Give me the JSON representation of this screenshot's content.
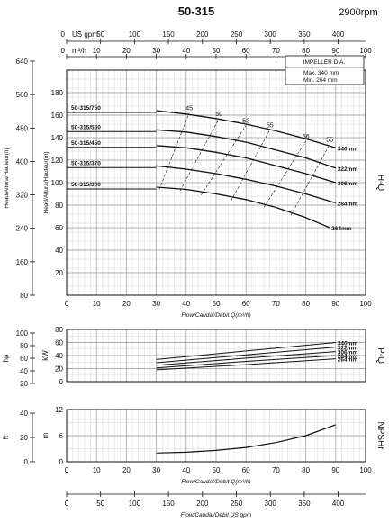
{
  "header": {
    "title": "50-315",
    "speed": "2900rpm"
  },
  "top_axes": {
    "us_gpm": {
      "label": "US gpm",
      "ticks": [
        0,
        50,
        100,
        150,
        200,
        250,
        300,
        350,
        400
      ]
    },
    "m3h": {
      "label": "m³/h",
      "ticks": [
        0,
        10,
        20,
        30,
        40,
        50,
        60,
        70,
        80,
        90,
        100
      ]
    }
  },
  "bottom_axis": {
    "label": "Flow/Caudal/Débit  US gpm",
    "ticks": [
      0,
      50,
      100,
      150,
      200,
      250,
      300,
      350,
      400
    ]
  },
  "impeller_box": {
    "title": "IMPELLER DIA.",
    "max": "Max.  340  mm",
    "min": "Min.   264  mm"
  },
  "side_labels": {
    "hq": "H-Q",
    "pq": "P-Q",
    "npsh": "NPSHr"
  },
  "colors": {
    "line": "#111111",
    "grid": "#9a9a9a",
    "grid_minor": "#cfcfcf"
  },
  "chart_data": [
    {
      "type": "line",
      "title": "H-Q",
      "xlabel": "Flow/Caudal/Débit Q(m³/h)",
      "ylabel": "Head/Altura/Hauteur(m)",
      "ylabel_secondary": "Head/Altura/Hauteur(ft)",
      "xlim": [
        0,
        100
      ],
      "ylim": [
        0,
        200
      ],
      "xticks": [
        0,
        10,
        20,
        30,
        40,
        50,
        60,
        70,
        80,
        90,
        100
      ],
      "yticks": [
        20,
        40,
        60,
        80,
        100,
        120,
        140,
        160,
        180
      ],
      "yticks_secondary": [
        80,
        160,
        240,
        320,
        400,
        480,
        560,
        640
      ],
      "grid": true,
      "series": [
        {
          "name": "340mm",
          "x": [
            30,
            40,
            50,
            60,
            70,
            80,
            90
          ],
          "y": [
            164,
            161,
            157,
            152,
            146,
            139,
            131
          ]
        },
        {
          "name": "322mm",
          "x": [
            30,
            40,
            50,
            60,
            70,
            80,
            90
          ],
          "y": [
            147,
            145,
            141,
            136,
            129,
            122,
            113
          ]
        },
        {
          "name": "306mm",
          "x": [
            30,
            40,
            50,
            60,
            70,
            80,
            90
          ],
          "y": [
            133,
            131,
            127,
            122,
            115,
            108,
            100
          ]
        },
        {
          "name": "284mm",
          "x": [
            30,
            40,
            50,
            60,
            70,
            80,
            90
          ],
          "y": [
            115,
            112,
            108,
            103,
            97,
            90,
            82
          ]
        },
        {
          "name": "264mm",
          "x": [
            30,
            40,
            50,
            60,
            70,
            80,
            88
          ],
          "y": [
            96,
            94,
            90,
            85,
            78,
            69,
            60
          ]
        }
      ],
      "curve_labels": [
        "50-315/750",
        "50-315/550",
        "50-315/450",
        "50-315/370",
        "50-315/300"
      ],
      "efficiency_lines": [
        {
          "label": "45",
          "x": [
            31,
            41
          ],
          "y": [
            94,
            162
          ]
        },
        {
          "label": "50",
          "x": [
            38,
            51
          ],
          "y": [
            93,
            157
          ]
        },
        {
          "label": "53",
          "x": [
            45,
            60
          ],
          "y": [
            89,
            151
          ]
        },
        {
          "label": "55",
          "x": [
            55,
            68
          ],
          "y": [
            84,
            147
          ]
        },
        {
          "label": "56",
          "x": [
            66,
            80
          ],
          "y": [
            78,
            137
          ]
        },
        {
          "label": "55",
          "x": [
            75,
            88
          ],
          "y": [
            71,
            134
          ]
        }
      ]
    },
    {
      "type": "line",
      "title": "P-Q",
      "ylabel": "kW",
      "ylabel_secondary": "hp",
      "xlim": [
        0,
        100
      ],
      "ylim": [
        0,
        80
      ],
      "yticks": [
        0,
        20,
        40,
        60,
        80
      ],
      "yticks_secondary": [
        20,
        40,
        60,
        80,
        100
      ],
      "grid": true,
      "series": [
        {
          "name": "340mm",
          "x": [
            30,
            60,
            90
          ],
          "y": [
            34,
            47,
            60
          ]
        },
        {
          "name": "322mm",
          "x": [
            30,
            60,
            90
          ],
          "y": [
            29,
            41,
            53
          ]
        },
        {
          "name": "306mm",
          "x": [
            30,
            60,
            90
          ],
          "y": [
            25,
            36,
            46
          ]
        },
        {
          "name": "284mm",
          "x": [
            30,
            60,
            90
          ],
          "y": [
            21,
            31,
            40
          ]
        },
        {
          "name": "264mm",
          "x": [
            30,
            60,
            90
          ],
          "y": [
            18,
            26,
            35
          ]
        }
      ]
    },
    {
      "type": "line",
      "title": "NPSHr",
      "ylabel": "m",
      "ylabel_secondary": "ft",
      "xlim": [
        0,
        100
      ],
      "ylim": [
        0,
        12
      ],
      "yticks": [
        0,
        6,
        12
      ],
      "yticks_secondary": [
        0,
        20,
        40
      ],
      "grid": true,
      "series": [
        {
          "name": "",
          "x": [
            30,
            40,
            50,
            60,
            70,
            80,
            90
          ],
          "y": [
            2,
            2.2,
            2.6,
            3.3,
            4.4,
            6,
            8.5
          ]
        }
      ]
    }
  ]
}
